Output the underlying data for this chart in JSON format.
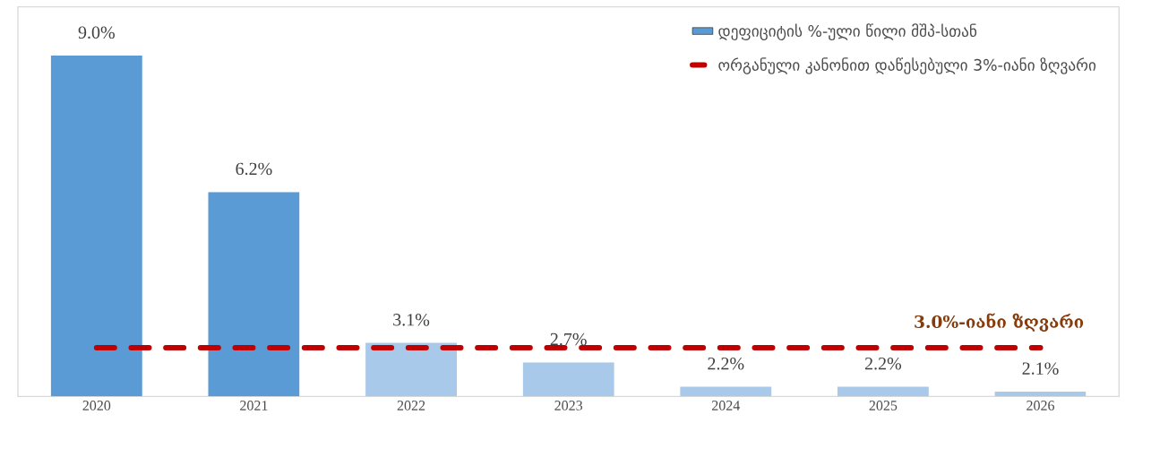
{
  "chart_data": {
    "type": "bar",
    "categories": [
      "2020",
      "2021",
      "2022",
      "2023",
      "2024",
      "2025",
      "2026"
    ],
    "series": [
      {
        "name": "დეფიციტის %-ული წილი მშპ-სთან",
        "color": "#5b9bd5",
        "colors": [
          "#5b9bd5",
          "#5b9bd5",
          "#a9c9ea",
          "#a9c9ea",
          "#a9c9ea",
          "#a9c9ea",
          "#a9c9ea"
        ],
        "values": [
          9.0,
          6.2,
          3.1,
          2.7,
          2.2,
          2.2,
          2.1
        ],
        "value_labels": [
          "9.0%",
          "6.2%",
          "3.1%",
          "2.7%",
          "2.2%",
          "2.2%",
          "2.1%"
        ]
      }
    ],
    "ylim": [
      2,
      10
    ],
    "ref_lines": [
      {
        "axis": "y",
        "value": 3.0,
        "label": "ორგანული კანონით დაწესებული 3%-იანი ზღვარი",
        "color": "#c00000",
        "line_style": "dashed"
      }
    ],
    "annotations": [
      {
        "text": "3.0%-იანი ზღვარი",
        "x": "2026",
        "y": 3.0
      }
    ],
    "legend": "top right",
    "tick_labels": "x",
    "grid": false
  }
}
